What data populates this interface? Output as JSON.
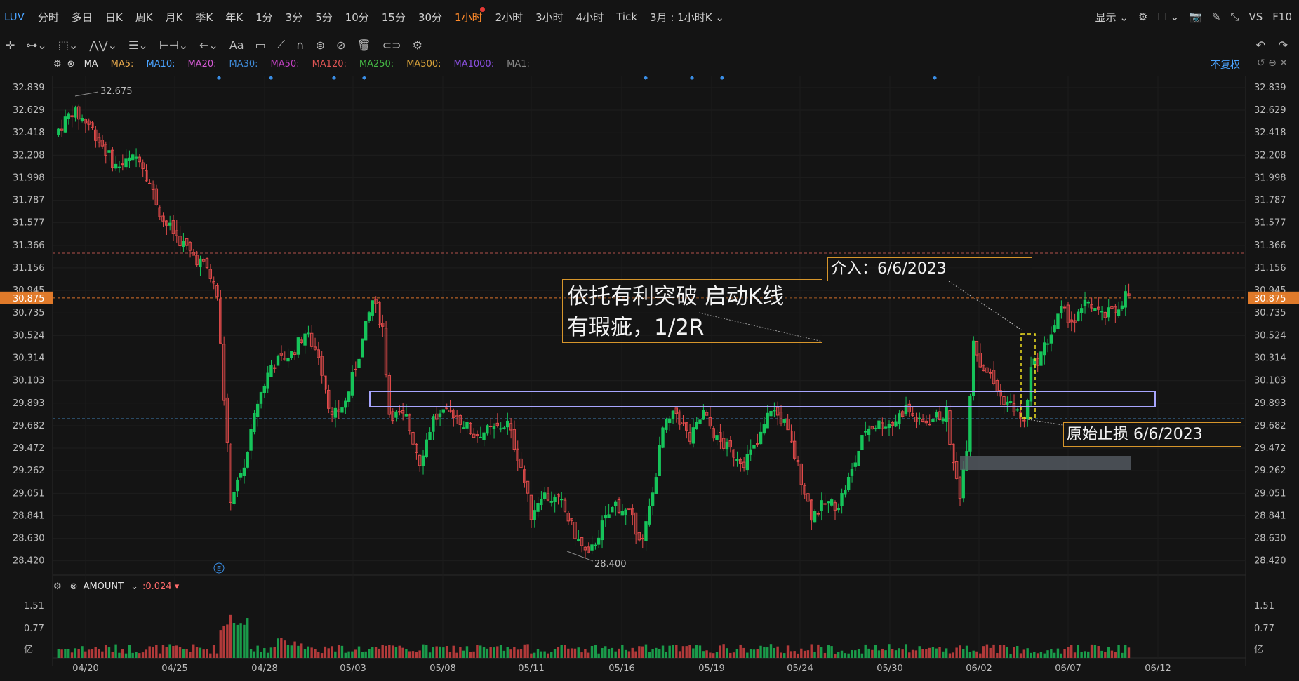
{
  "toolbar": {
    "symbol": "LUV",
    "timeframes": [
      "分时",
      "多日",
      "日K",
      "周K",
      "月K",
      "季K",
      "年K",
      "1分",
      "3分",
      "5分",
      "10分",
      "15分",
      "30分",
      "1小时",
      "2小时",
      "3小时",
      "4小时",
      "Tick"
    ],
    "active_timeframe": "1小时",
    "layout_select": "3月 : 1小时K",
    "display_label": "显示",
    "vs_label": "VS",
    "f10_label": "F10"
  },
  "drawing_tools": [
    "crosshair-icon",
    "segment-icon",
    "rect-icon",
    "wave-icon",
    "list-icon",
    "measure-icon",
    "arrow-icon",
    "text-icon",
    "comment-icon",
    "pen-icon",
    "magnet-icon",
    "lock-icon",
    "hide-icon",
    "trash-icon",
    "link-icon",
    "settings-icon"
  ],
  "text_tool_label": "Aa",
  "main_legend": {
    "indicator": "MA",
    "items": [
      {
        "label": "MA5:",
        "color": "#e6a84c"
      },
      {
        "label": "MA10:",
        "color": "#4aa3ff"
      },
      {
        "label": "MA20:",
        "color": "#d45ad4"
      },
      {
        "label": "MA30:",
        "color": "#3f8ad6"
      },
      {
        "label": "MA50:",
        "color": "#c040c0"
      },
      {
        "label": "MA120:",
        "color": "#e05555"
      },
      {
        "label": "MA250:",
        "color": "#45b845"
      },
      {
        "label": "MA500:",
        "color": "#d6a13a"
      },
      {
        "label": "MA1000:",
        "color": "#8a4fe0"
      },
      {
        "label": "MA1:",
        "color": "#888888"
      }
    ],
    "adjust_label": "不复权"
  },
  "price_axis": [
    "32.839",
    "32.629",
    "32.418",
    "32.208",
    "31.998",
    "31.787",
    "31.577",
    "31.366",
    "31.156",
    "30.945",
    "30.735",
    "30.524",
    "30.314",
    "30.103",
    "29.893",
    "29.682",
    "29.472",
    "29.262",
    "29.051",
    "28.841",
    "28.630",
    "28.420"
  ],
  "current_price": "30.875",
  "high_label": "32.675",
  "low_label": "28.400",
  "date_axis": [
    "04/20",
    "04/25",
    "04/28",
    "05/03",
    "05/08",
    "05/11",
    "05/16",
    "05/19",
    "05/24",
    "05/30",
    "06/02",
    "06/07",
    "06/12"
  ],
  "annotations": {
    "main_line1": "依托有利突破  启动K线",
    "main_line2": "有瑕疵，1/2R",
    "entry": "介入：6/6/2023",
    "stop": "原始止损 6/6/2023"
  },
  "event_marker": "E",
  "volume": {
    "indicator": "AMOUNT",
    "value": "0.024",
    "axis": [
      "1.51",
      "0.77",
      "亿"
    ]
  },
  "chart_data": {
    "type": "candlestick",
    "symbol": "LUV",
    "interval": "1小时",
    "ylim": [
      28.3,
      32.95
    ],
    "high": 32.675,
    "low": 28.4,
    "last": 30.875,
    "anchors": [
      [
        0,
        32.4
      ],
      [
        5,
        32.62
      ],
      [
        10,
        32.5
      ],
      [
        18,
        32.1
      ],
      [
        25,
        32.2
      ],
      [
        32,
        31.6
      ],
      [
        40,
        31.3
      ],
      [
        45,
        31.15
      ],
      [
        48,
        30.9
      ],
      [
        52,
        29.0
      ],
      [
        56,
        29.3
      ],
      [
        60,
        29.9
      ],
      [
        64,
        30.25
      ],
      [
        70,
        30.35
      ],
      [
        74,
        30.55
      ],
      [
        78,
        30.35
      ],
      [
        82,
        29.75
      ],
      [
        86,
        29.9
      ],
      [
        90,
        30.35
      ],
      [
        94,
        30.85
      ],
      [
        97,
        30.6
      ],
      [
        99,
        29.8
      ],
      [
        104,
        29.75
      ],
      [
        108,
        29.35
      ],
      [
        112,
        29.75
      ],
      [
        118,
        29.8
      ],
      [
        124,
        29.6
      ],
      [
        130,
        29.65
      ],
      [
        134,
        29.7
      ],
      [
        138,
        29.3
      ],
      [
        141,
        28.85
      ],
      [
        144,
        29.05
      ],
      [
        150,
        28.95
      ],
      [
        155,
        28.6
      ],
      [
        158,
        28.45
      ],
      [
        162,
        28.75
      ],
      [
        166,
        28.95
      ],
      [
        170,
        28.85
      ],
      [
        174,
        28.6
      ],
      [
        177,
        29.05
      ],
      [
        180,
        29.65
      ],
      [
        184,
        29.8
      ],
      [
        188,
        29.55
      ],
      [
        192,
        29.8
      ],
      [
        196,
        29.55
      ],
      [
        200,
        29.45
      ],
      [
        204,
        29.35
      ],
      [
        208,
        29.5
      ],
      [
        212,
        29.85
      ],
      [
        216,
        29.7
      ],
      [
        220,
        29.3
      ],
      [
        224,
        28.85
      ],
      [
        228,
        28.95
      ],
      [
        232,
        28.95
      ],
      [
        236,
        29.25
      ],
      [
        240,
        29.65
      ],
      [
        244,
        29.7
      ],
      [
        248,
        29.7
      ],
      [
        252,
        29.85
      ],
      [
        256,
        29.7
      ],
      [
        260,
        29.75
      ],
      [
        264,
        29.8
      ],
      [
        266,
        29.3
      ],
      [
        268,
        29.05
      ],
      [
        270,
        29.5
      ],
      [
        272,
        30.5
      ],
      [
        274,
        30.25
      ],
      [
        276,
        30.2
      ],
      [
        280,
        29.95
      ],
      [
        284,
        29.85
      ],
      [
        287,
        29.7
      ],
      [
        289,
        30.2
      ],
      [
        292,
        30.35
      ],
      [
        295,
        30.55
      ],
      [
        298,
        30.75
      ],
      [
        302,
        30.65
      ],
      [
        306,
        30.85
      ],
      [
        310,
        30.7
      ],
      [
        314,
        30.75
      ],
      [
        317,
        30.9
      ]
    ],
    "volume_peak": 1.51
  }
}
